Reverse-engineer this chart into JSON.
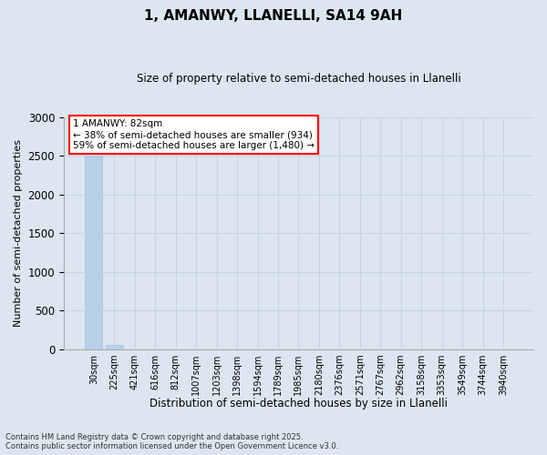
{
  "title_line1": "1, AMANWY, LLANELLI, SA14 9AH",
  "title_line2": "Size of property relative to semi-detached houses in Llanelli",
  "xlabel": "Distribution of semi-detached houses by size in Llanelli",
  "ylabel": "Number of semi-detached properties",
  "categories": [
    "30sqm",
    "225sqm",
    "421sqm",
    "616sqm",
    "812sqm",
    "1007sqm",
    "1203sqm",
    "1398sqm",
    "1594sqm",
    "1789sqm",
    "1985sqm",
    "2180sqm",
    "2376sqm",
    "2571sqm",
    "2767sqm",
    "2962sqm",
    "3158sqm",
    "3353sqm",
    "3549sqm",
    "3744sqm",
    "3940sqm"
  ],
  "values": [
    2500,
    60,
    2,
    1,
    0,
    0,
    0,
    0,
    0,
    0,
    0,
    0,
    0,
    0,
    0,
    0,
    0,
    0,
    0,
    0,
    0
  ],
  "bar_color": "#b8cfe8",
  "bar_edge_color": "#a8bfd8",
  "grid_color": "#c8d4e4",
  "background_color": "#dce6f0",
  "annotation_text": "1 AMANWY: 82sqm\n← 38% of semi-detached houses are smaller (934)\n59% of semi-detached houses are larger (1,480) →",
  "annotation_box_color": "white",
  "annotation_box_edge": "red",
  "ylim": [
    0,
    3000
  ],
  "yticks": [
    0,
    500,
    1000,
    1500,
    2000,
    2500,
    3000
  ],
  "footnote_line1": "Contains HM Land Registry data © Crown copyright and database right 2025.",
  "footnote_line2": "Contains public sector information licensed under the Open Government Licence v3.0."
}
